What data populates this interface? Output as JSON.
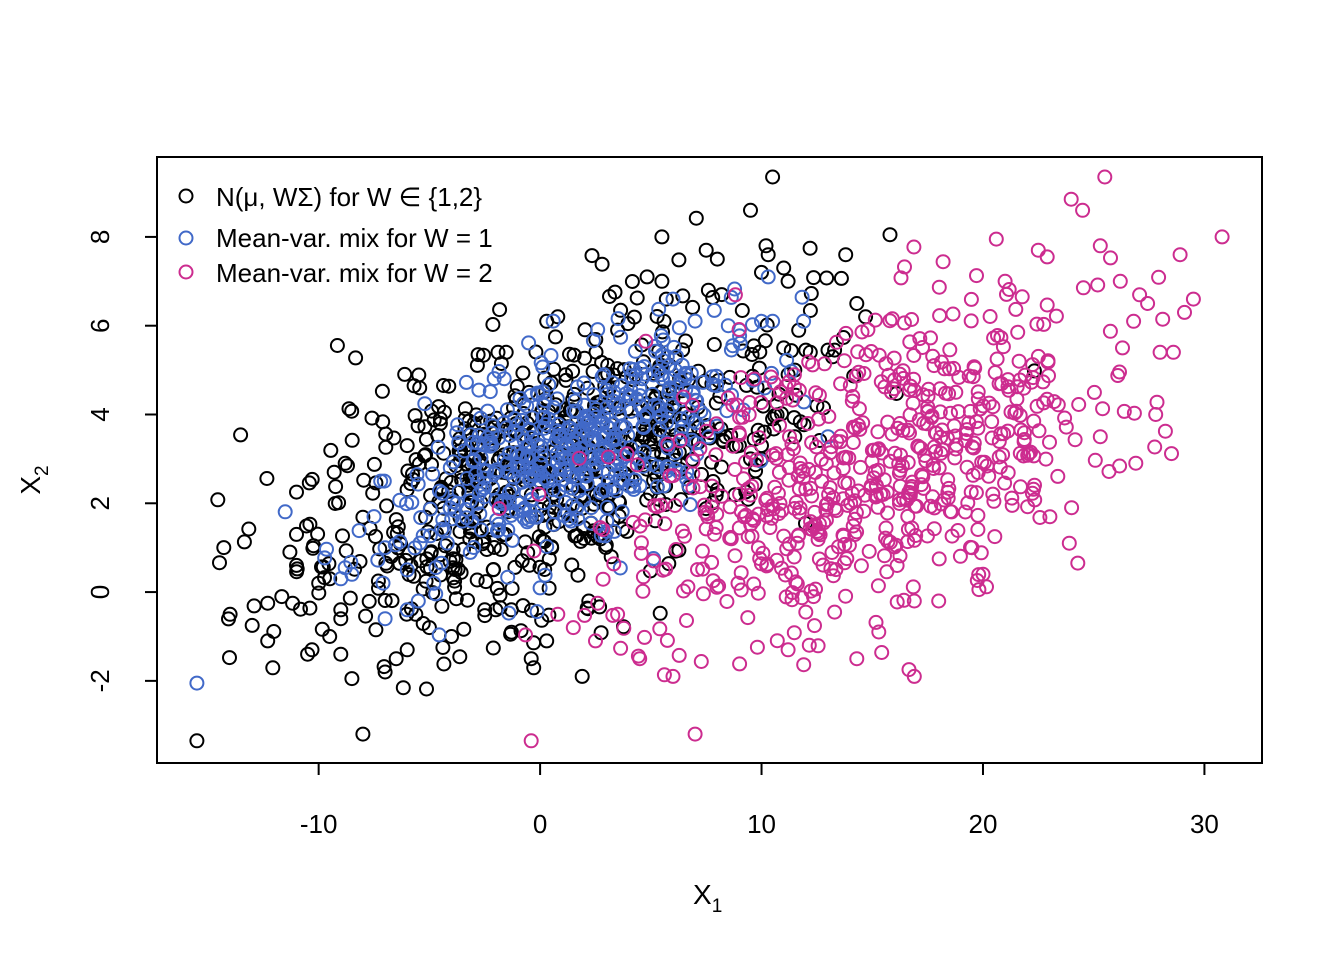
{
  "chart_data": {
    "type": "scatter",
    "title": "",
    "xlabel": "X",
    "xlabel_sub": "1",
    "ylabel": "X",
    "ylabel_sub": "2",
    "xlim": [
      -17.3,
      32.6
    ],
    "ylim": [
      -3.85,
      9.8
    ],
    "x_ticks": [
      -10,
      0,
      10,
      20,
      30
    ],
    "y_ticks": [
      -2,
      0,
      2,
      4,
      6,
      8
    ],
    "grid": false,
    "legend_position": "top-left",
    "series": [
      {
        "name": "N(μ, WΣ) for W ∈ {1,2}",
        "color": "#000000",
        "center": [
          0.0,
          2.7
        ],
        "sd_x": 5.5,
        "sd_y": 1.75,
        "rho": 0.5,
        "n": 700,
        "extremes": [
          [
            -15.5,
            -3.35
          ],
          [
            10.5,
            9.35
          ],
          [
            9.5,
            8.6
          ],
          [
            -8.0,
            -3.2
          ],
          [
            15.8,
            8.05
          ],
          [
            -14.0,
            -0.5
          ],
          [
            -12.3,
            -0.25
          ],
          [
            -12.3,
            -1.1
          ],
          [
            -10.5,
            -1.4
          ],
          [
            -8.5,
            -1.95
          ],
          [
            -8.8,
            2.9
          ],
          [
            -9.3,
            2.7
          ],
          [
            -11.0,
            1.3
          ],
          [
            -11.3,
            0.9
          ],
          [
            -6.0,
            3.3
          ],
          [
            -4.5,
            3.8
          ],
          [
            -4.5,
            3.9
          ],
          [
            -2.8,
            5.35
          ],
          [
            -1.9,
            5.4
          ],
          [
            0.3,
            6.1
          ],
          [
            0.8,
            6.2
          ],
          [
            3.5,
            5.9
          ],
          [
            5.5,
            7.0
          ],
          [
            5.7,
            6.6
          ],
          [
            5.6,
            6.1
          ],
          [
            5.5,
            8.0
          ],
          [
            7.5,
            7.7
          ],
          [
            8.0,
            7.5
          ],
          [
            10.2,
            7.8
          ],
          [
            10.3,
            7.6
          ],
          [
            11.0,
            7.3
          ],
          [
            11.2,
            7.0
          ],
          [
            10.0,
            7.2
          ],
          [
            7.6,
            6.8
          ],
          [
            8.2,
            6.7
          ],
          [
            13.8,
            7.6
          ],
          [
            14.3,
            6.5
          ],
          [
            14.7,
            6.2
          ],
          [
            13.0,
            5.45
          ],
          [
            13.3,
            5.45
          ],
          [
            12.0,
            5.45
          ],
          [
            12.2,
            5.4
          ],
          [
            11.0,
            5.5
          ],
          [
            11.5,
            5.0
          ],
          [
            11.2,
            4.9
          ],
          [
            12.8,
            4.15
          ],
          [
            12.5,
            4.2
          ],
          [
            11.5,
            3.5
          ],
          [
            10.5,
            3.9
          ],
          [
            10.0,
            3.3
          ],
          [
            10.0,
            3.0
          ],
          [
            9.5,
            3.0
          ],
          [
            9.0,
            3.3
          ],
          [
            2.2,
            -0.2
          ],
          [
            1.9,
            -1.9
          ],
          [
            0.3,
            -1.1
          ],
          [
            -0.4,
            -1.5
          ],
          [
            -1.3,
            -0.4
          ],
          [
            -2.0,
            -0.4
          ],
          [
            -2.5,
            -0.4
          ],
          [
            -4.0,
            -1.0
          ],
          [
            -5.0,
            -0.8
          ],
          [
            -6.0,
            -1.3
          ],
          [
            -6.5,
            -1.5
          ],
          [
            -7.0,
            -1.8
          ],
          [
            -9.0,
            -1.4
          ],
          [
            -10.3,
            -1.3
          ],
          [
            -9.5,
            -1.0
          ],
          [
            -9.0,
            -0.6
          ],
          [
            -9.0,
            -0.4
          ],
          [
            -13.0,
            -0.75
          ],
          [
            -11.0,
            0.6
          ],
          [
            -10.0,
            0.2
          ],
          [
            -9.5,
            0.3
          ]
        ]
      },
      {
        "name": "Mean-var. mix for W = 1",
        "color": "#4169c8",
        "center": [
          1.5,
          3.2
        ],
        "sd_x": 3.6,
        "sd_y": 1.2,
        "rho": 0.55,
        "n": 500,
        "extremes": [
          [
            -15.5,
            -2.05
          ],
          [
            10.3,
            7.1
          ],
          [
            11.9,
            6.1
          ],
          [
            10.0,
            6.1
          ],
          [
            9.0,
            5.9
          ],
          [
            8.7,
            5.55
          ],
          [
            6.0,
            6.6
          ],
          [
            8.5,
            6.0
          ],
          [
            -7.0,
            1.0
          ],
          [
            -8.5,
            0.4
          ],
          [
            -8.8,
            0.55
          ],
          [
            -9.0,
            0.3
          ],
          [
            -7.0,
            -0.6
          ],
          [
            -7.5,
            1.7
          ],
          [
            -7.2,
            2.5
          ],
          [
            -6.0,
            0.5
          ],
          [
            -6.0,
            -0.4
          ],
          [
            -5.5,
            -0.2
          ],
          [
            10.5,
            6.1
          ],
          [
            13.0,
            3.5
          ]
        ]
      },
      {
        "name": "Mean-var. mix for W = 2",
        "color": "#cc2c8f",
        "center": [
          15.0,
          2.8
        ],
        "sd_x": 5.6,
        "sd_y": 1.85,
        "rho": 0.45,
        "n": 640,
        "extremes": [
          [
            25.5,
            9.35
          ],
          [
            24.5,
            8.6
          ],
          [
            30.8,
            8.0
          ],
          [
            28.9,
            7.6
          ],
          [
            25.3,
            7.8
          ],
          [
            22.5,
            7.7
          ],
          [
            22.9,
            7.55
          ],
          [
            20.6,
            7.95
          ],
          [
            21.0,
            7.0
          ],
          [
            26.2,
            7.0
          ],
          [
            26.8,
            6.1
          ],
          [
            29.5,
            6.6
          ],
          [
            29.1,
            6.3
          ],
          [
            -0.4,
            -3.35
          ],
          [
            7.0,
            -3.2
          ],
          [
            16.9,
            -1.9
          ],
          [
            14.3,
            -1.5
          ],
          [
            6.0,
            -1.9
          ],
          [
            4.5,
            -1.5
          ],
          [
            2.5,
            -1.1
          ],
          [
            2.6,
            -0.25
          ],
          [
            3.5,
            -0.5
          ],
          [
            0.8,
            -0.5
          ],
          [
            1.5,
            -0.8
          ],
          [
            27.8,
            4.0
          ],
          [
            28.0,
            5.4
          ],
          [
            28.6,
            5.4
          ],
          [
            26.3,
            5.5
          ],
          [
            25.3,
            3.5
          ],
          [
            24.0,
            1.9
          ],
          [
            23.9,
            1.1
          ],
          [
            20.0,
            0.4
          ],
          [
            19.5,
            1.0
          ],
          [
            16.9,
            -0.2
          ],
          [
            18.0,
            -0.2
          ],
          [
            13.3,
            -0.45
          ],
          [
            12.0,
            -0.45
          ],
          [
            11.2,
            -1.3
          ]
        ]
      }
    ]
  }
}
